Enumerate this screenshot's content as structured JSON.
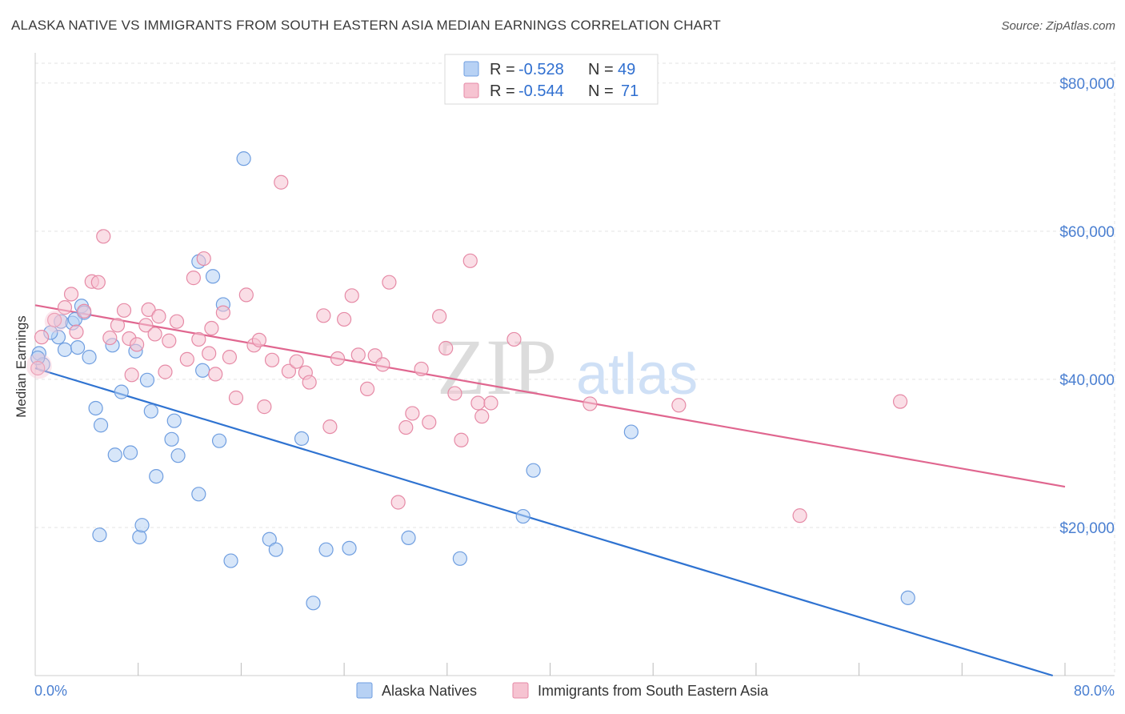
{
  "title": "ALASKA NATIVE VS IMMIGRANTS FROM SOUTH EASTERN ASIA MEDIAN EARNINGS CORRELATION CHART",
  "source": "Source: ZipAtlas.com",
  "watermark": {
    "zip": "ZIP",
    "atlas": "atlas"
  },
  "colors": {
    "blue_fill": "#b7d1f4",
    "blue_stroke": "#6f9ee0",
    "blue_line": "#2f73d1",
    "pink_fill": "#f6c3d1",
    "pink_stroke": "#e68aa6",
    "pink_line": "#e0668f",
    "grid": "#e3e3e3",
    "axis_label": "#4a7fd1"
  },
  "legend": {
    "r_label": "R =",
    "n_label": "N =",
    "rows": [
      {
        "r": "-0.528",
        "n": "49"
      },
      {
        "r": "-0.544",
        "n": "71"
      }
    ]
  },
  "chart_data": {
    "type": "scatter",
    "title": "ALASKA NATIVE VS IMMIGRANTS FROM SOUTH EASTERN ASIA MEDIAN EARNINGS CORRELATION CHART",
    "xlabel": "",
    "ylabel": "Median Earnings",
    "xlim": [
      0,
      80
    ],
    "ylim": [
      0,
      83000
    ],
    "x_tick_labels": [
      "0.0%",
      "80.0%"
    ],
    "y_ticks": [
      20000,
      40000,
      60000,
      80000
    ],
    "y_tick_labels": [
      "$20,000",
      "$40,000",
      "$60,000",
      "$80,000"
    ],
    "grid": true,
    "legend_position": "top-center",
    "series": [
      {
        "name": "Alaska Natives",
        "r": -0.528,
        "n": 49,
        "trend": {
          "x": [
            0,
            80
          ],
          "y": [
            41500,
            -500
          ]
        },
        "points": [
          [
            0.3,
            43500
          ],
          [
            0.6,
            42000
          ],
          [
            1.8,
            45700
          ],
          [
            2.0,
            47800
          ],
          [
            2.3,
            44000
          ],
          [
            2.9,
            47600
          ],
          [
            3.3,
            44300
          ],
          [
            3.6,
            49900
          ],
          [
            3.8,
            49000
          ],
          [
            4.2,
            43000
          ],
          [
            4.7,
            36100
          ],
          [
            5.1,
            33800
          ],
          [
            6.0,
            44600
          ],
          [
            6.2,
            29800
          ],
          [
            6.7,
            38300
          ],
          [
            7.4,
            30100
          ],
          [
            7.8,
            43800
          ],
          [
            8.1,
            18700
          ],
          [
            8.3,
            20300
          ],
          [
            8.7,
            39900
          ],
          [
            9.0,
            35700
          ],
          [
            9.4,
            26900
          ],
          [
            10.6,
            31900
          ],
          [
            10.8,
            34400
          ],
          [
            11.1,
            29700
          ],
          [
            12.7,
            24500
          ],
          [
            13.0,
            41200
          ],
          [
            13.8,
            53900
          ],
          [
            14.3,
            31700
          ],
          [
            14.6,
            50100
          ],
          [
            15.2,
            15500
          ],
          [
            16.2,
            69800
          ],
          [
            18.2,
            18400
          ],
          [
            18.7,
            17000
          ],
          [
            20.7,
            32000
          ],
          [
            21.6,
            9800
          ],
          [
            22.6,
            17000
          ],
          [
            24.4,
            17200
          ],
          [
            29.0,
            18600
          ],
          [
            33.0,
            15800
          ],
          [
            37.9,
            21500
          ],
          [
            38.7,
            27700
          ],
          [
            46.3,
            32900
          ],
          [
            67.8,
            10500
          ],
          [
            12.7,
            55900
          ],
          [
            0.2,
            42900
          ],
          [
            1.2,
            46300
          ],
          [
            5.0,
            19000
          ],
          [
            3.1,
            48100
          ]
        ]
      },
      {
        "name": "Immigrants from South Eastern Asia",
        "r": -0.544,
        "n": 71,
        "trend": {
          "x": [
            0,
            80
          ],
          "y": [
            50000,
            25500
          ]
        },
        "points": [
          [
            0.2,
            41500
          ],
          [
            0.5,
            45700
          ],
          [
            1.5,
            48000
          ],
          [
            2.3,
            49700
          ],
          [
            2.8,
            51500
          ],
          [
            3.2,
            46400
          ],
          [
            3.8,
            49200
          ],
          [
            4.4,
            53200
          ],
          [
            4.9,
            53100
          ],
          [
            5.3,
            59300
          ],
          [
            5.8,
            45600
          ],
          [
            6.4,
            47300
          ],
          [
            6.9,
            49300
          ],
          [
            7.3,
            45500
          ],
          [
            7.9,
            44700
          ],
          [
            8.6,
            47300
          ],
          [
            8.8,
            49400
          ],
          [
            9.3,
            46100
          ],
          [
            9.6,
            48500
          ],
          [
            10.1,
            41000
          ],
          [
            10.4,
            45200
          ],
          [
            11.0,
            47800
          ],
          [
            11.8,
            42700
          ],
          [
            12.3,
            53700
          ],
          [
            12.7,
            45400
          ],
          [
            13.1,
            56300
          ],
          [
            13.7,
            46900
          ],
          [
            14.0,
            40700
          ],
          [
            14.6,
            49000
          ],
          [
            15.1,
            43000
          ],
          [
            15.6,
            37500
          ],
          [
            16.4,
            51400
          ],
          [
            17.0,
            44600
          ],
          [
            17.4,
            45300
          ],
          [
            17.8,
            36300
          ],
          [
            18.4,
            42600
          ],
          [
            19.1,
            66600
          ],
          [
            19.7,
            41100
          ],
          [
            20.3,
            42400
          ],
          [
            21.0,
            40900
          ],
          [
            21.3,
            39600
          ],
          [
            22.4,
            48600
          ],
          [
            22.9,
            33600
          ],
          [
            23.5,
            42800
          ],
          [
            24.0,
            48100
          ],
          [
            24.6,
            51300
          ],
          [
            25.1,
            43300
          ],
          [
            25.8,
            38700
          ],
          [
            26.4,
            43200
          ],
          [
            27.0,
            42000
          ],
          [
            27.5,
            53100
          ],
          [
            28.2,
            23400
          ],
          [
            28.8,
            33500
          ],
          [
            29.3,
            35400
          ],
          [
            30.0,
            41400
          ],
          [
            30.6,
            34200
          ],
          [
            31.4,
            48500
          ],
          [
            31.9,
            44200
          ],
          [
            32.6,
            38100
          ],
          [
            33.1,
            31800
          ],
          [
            33.8,
            56000
          ],
          [
            34.4,
            36800
          ],
          [
            34.7,
            35000
          ],
          [
            35.4,
            36800
          ],
          [
            37.2,
            45400
          ],
          [
            43.1,
            36700
          ],
          [
            50.0,
            36500
          ],
          [
            59.4,
            21600
          ],
          [
            67.2,
            37000
          ],
          [
            13.5,
            43500
          ],
          [
            7.5,
            40600
          ]
        ]
      }
    ]
  }
}
